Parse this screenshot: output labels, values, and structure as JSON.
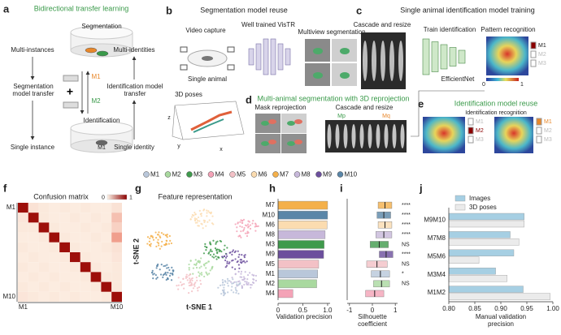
{
  "panels": {
    "a": {
      "label": "a",
      "title": "Bidirectional transfer learning",
      "segmentation": "Segmentation",
      "multi_instances": "Multi-instances",
      "multi_identities": "Multi-identities",
      "seg_transfer": "Segmentation model transfer",
      "id_transfer": "Identification model transfer",
      "identification": "Identification",
      "single_instance": "Single instance",
      "single_identity": "Single identity",
      "m1_top": "M1",
      "m2": "M2",
      "m1_bottom": "M1"
    },
    "b": {
      "label": "b",
      "title": "Segmentation model reuse",
      "video_capture": "Video capture",
      "vistr": "Well trained VisTR",
      "multiview": "Multiview segmentation",
      "single_animal": "Single animal"
    },
    "c": {
      "label": "c",
      "title": "Single animal identification model training",
      "cascade": "Cascade and resize",
      "train": "Train identification",
      "pattern": "Pattern recognition",
      "efficientnet": "EfficientNet",
      "legend": [
        "M1",
        "M2",
        "M3"
      ],
      "colorbar": [
        0,
        1
      ]
    },
    "d": {
      "label": "d",
      "title": "Multi-animal segmentation with 3D reprojection",
      "poses": "3D poses",
      "mask": "Mask reprojection",
      "cascade": "Cascade and resize",
      "mp": "Mp",
      "mq": "Mq",
      "axes": [
        "z",
        "y",
        "x"
      ]
    },
    "e": {
      "label": "e",
      "title": "Identification model reuse",
      "recognition": "Identification recognition",
      "legend": [
        "M1",
        "M2",
        "M3"
      ]
    },
    "g": {
      "label": "g",
      "title": "Feature representation",
      "xlabel": "t-SNE 1",
      "ylabel": "t-SNE 2"
    }
  },
  "legend": {
    "names": [
      "M1",
      "M2",
      "M3",
      "M4",
      "M5",
      "M6",
      "M7",
      "M8",
      "M9",
      "M10"
    ],
    "colors": [
      "#b9c7da",
      "#a9d99f",
      "#3f9a4c",
      "#f4a3b7",
      "#f3c1c6",
      "#fbdcb0",
      "#f4b04a",
      "#c7b8da",
      "#6c4f9d",
      "#5a86a8"
    ]
  },
  "chart_data": [
    {
      "panel": "f",
      "type": "heatmap",
      "title": "Confusion matrix",
      "rows": [
        "M1",
        null,
        null,
        null,
        null,
        null,
        null,
        null,
        null,
        "M10"
      ],
      "columns": [
        "M1",
        null,
        null,
        null,
        null,
        null,
        null,
        null,
        null,
        "M10"
      ],
      "values": [
        [
          0.9,
          0.05,
          0.03,
          0.02,
          0.03,
          0.02,
          0.03,
          0.02,
          0.02,
          0.05
        ],
        [
          0.04,
          0.9,
          0.03,
          0.02,
          0.02,
          0.03,
          0.02,
          0.03,
          0.02,
          0.15
        ],
        [
          0.03,
          0.03,
          0.9,
          0.03,
          0.02,
          0.02,
          0.03,
          0.02,
          0.03,
          0.1
        ],
        [
          0.02,
          0.02,
          0.03,
          0.9,
          0.03,
          0.02,
          0.02,
          0.03,
          0.02,
          0.25
        ],
        [
          0.03,
          0.02,
          0.02,
          0.03,
          0.9,
          0.03,
          0.02,
          0.02,
          0.03,
          0.05
        ],
        [
          0.02,
          0.03,
          0.02,
          0.02,
          0.03,
          0.9,
          0.03,
          0.02,
          0.02,
          0.04
        ],
        [
          0.03,
          0.02,
          0.03,
          0.02,
          0.02,
          0.03,
          0.9,
          0.03,
          0.02,
          0.03
        ],
        [
          0.02,
          0.03,
          0.02,
          0.03,
          0.02,
          0.02,
          0.03,
          0.9,
          0.03,
          0.03
        ],
        [
          0.03,
          0.02,
          0.03,
          0.02,
          0.03,
          0.02,
          0.02,
          0.03,
          0.9,
          0.03
        ],
        [
          0.04,
          0.03,
          0.02,
          0.03,
          0.02,
          0.03,
          0.02,
          0.02,
          0.03,
          0.9
        ]
      ],
      "colorbar_ticks": [
        0,
        1
      ]
    },
    {
      "panel": "h",
      "type": "barh",
      "categories": [
        "M7",
        "M10",
        "M6",
        "M8",
        "M3",
        "M9",
        "M5",
        "M1",
        "M2",
        "M4"
      ],
      "values": [
        1.0,
        1.0,
        0.99,
        0.95,
        0.93,
        0.92,
        0.82,
        0.8,
        0.78,
        0.3
      ],
      "colors": [
        "#f4b04a",
        "#5a86a8",
        "#fbdcb0",
        "#c7b8da",
        "#3f9a4c",
        "#6c4f9d",
        "#f3c1c6",
        "#b9c7da",
        "#a9d99f",
        "#f4a3b7"
      ],
      "xlim": [
        0,
        1.05
      ],
      "xticks": [
        0,
        0.5,
        {
          "value": 1,
          "label": "1.0"
        }
      ],
      "xlabel": "Validation precision"
    },
    {
      "panel": "i",
      "type": "box",
      "categories": [
        "M7",
        "M10",
        "M6",
        "M8",
        "M3",
        "M9",
        "M5",
        "M1",
        "M2",
        "M4"
      ],
      "values": [
        0.55,
        0.5,
        0.55,
        0.5,
        0.3,
        0.6,
        0.2,
        0.35,
        0.4,
        0.1
      ],
      "errors": [
        0.3,
        0.3,
        0.3,
        0.35,
        0.4,
        0.3,
        0.45,
        0.4,
        0.35,
        0.4
      ],
      "colors": [
        "#f4b04a",
        "#5a86a8",
        "#fbdcb0",
        "#c7b8da",
        "#3f9a4c",
        "#6c4f9d",
        "#f3c1c6",
        "#b9c7da",
        "#a9d99f",
        "#f4a3b7"
      ],
      "significance": [
        "****",
        "****",
        "****",
        "****",
        "NS",
        "****",
        "NS",
        "*",
        "NS",
        null
      ],
      "xlim": [
        -1.1,
        1.1
      ],
      "xticks": [
        -1,
        0,
        1
      ],
      "xlabel": "Silhouette coefficient"
    },
    {
      "panel": "j",
      "type": "grouped_barh",
      "categories": [
        "M9M10",
        "M7M8",
        "M5M6",
        "M3M4",
        "M1M2"
      ],
      "series": [
        {
          "name": "Images",
          "color": "#a6cfe3",
          "values": [
            0.945,
            0.918,
            0.925,
            0.89,
            0.943
          ]
        },
        {
          "name": "3D poses",
          "color": "#ebebeb",
          "values": [
            0.945,
            0.935,
            0.858,
            0.912,
            0.995
          ]
        }
      ],
      "xlim": [
        0.8,
        1.0
      ],
      "xticks": [
        {
          "value": 0.8,
          "label": "0.80"
        },
        {
          "value": 0.85,
          "label": "0.85"
        },
        {
          "value": 0.9,
          "label": "0.90"
        },
        {
          "value": 0.95,
          "label": "0.95"
        },
        {
          "value": 1,
          "label": "1.00"
        }
      ],
      "xlabel": "Manual validation precision"
    }
  ]
}
